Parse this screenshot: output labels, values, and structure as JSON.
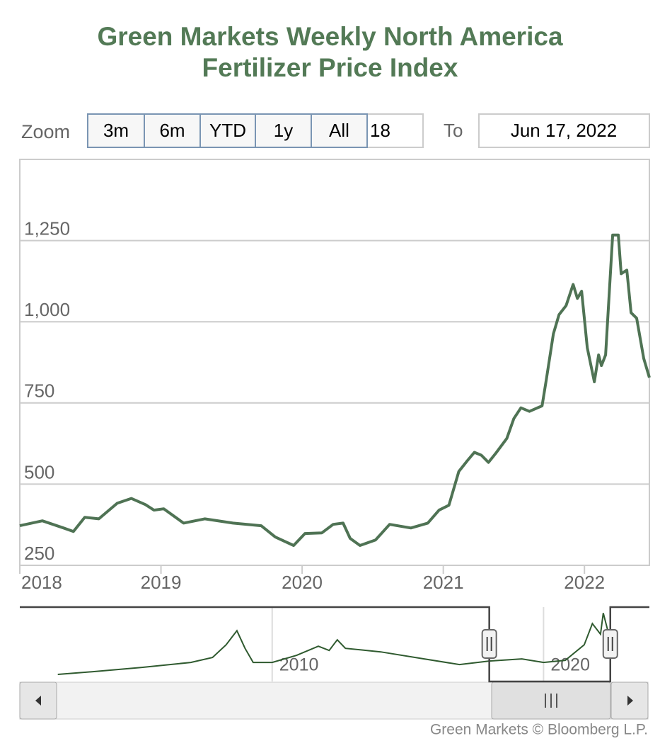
{
  "chart_data": {
    "type": "line",
    "title": "Green Markets Weekly North America\nFertilizer Price Index",
    "range_selector": {
      "label": "Zoom",
      "buttons": [
        "3m",
        "6m",
        "YTD",
        "1y",
        "All"
      ],
      "from_value": "18",
      "to_label": "To",
      "to_value": "Jun 17, 2022"
    },
    "x": [
      2018.0,
      2018.16,
      2018.31,
      2018.38,
      2018.46,
      2018.56,
      2018.69,
      2018.79,
      2018.89,
      2018.95,
      2019.02,
      2019.16,
      2019.31,
      2019.51,
      2019.71,
      2019.81,
      2019.94,
      2020.02,
      2020.14,
      2020.22,
      2020.29,
      2020.34,
      2020.41,
      2020.52,
      2020.62,
      2020.77,
      2020.89,
      2020.97,
      2021.04,
      2021.11,
      2021.17,
      2021.22,
      2021.27,
      2021.32,
      2021.37,
      2021.45,
      2021.5,
      2021.55,
      2021.61,
      2021.7,
      2021.73,
      2021.78,
      2021.82,
      2021.87,
      2021.92,
      2021.95,
      2021.98,
      2022.02,
      2022.07,
      2022.1,
      2022.12,
      2022.15,
      2022.2,
      2022.24,
      2022.26,
      2022.3,
      2022.33,
      2022.37,
      2022.42,
      2022.46
    ],
    "values": [
      372,
      387,
      365,
      354,
      398,
      393,
      441,
      456,
      437,
      420,
      424,
      380,
      393,
      380,
      372,
      337,
      311,
      348,
      350,
      376,
      380,
      333,
      311,
      328,
      376,
      365,
      380,
      420,
      435,
      539,
      572,
      598,
      589,
      567,
      594,
      641,
      702,
      735,
      724,
      741,
      822,
      963,
      1022,
      1050,
      1115,
      1072,
      1094,
      920,
      815,
      898,
      865,
      898,
      1267,
      1267,
      1148,
      1159,
      1028,
      1011,
      887,
      828
    ],
    "color": "#4f7354",
    "xlim": [
      2018.0,
      2022.46
    ],
    "xticks": [
      2018,
      2019,
      2020,
      2021,
      2022
    ],
    "ylim": [
      250,
      1500
    ],
    "yticks": [
      250,
      500,
      750,
      {
        "value": 1000,
        "label": "1,000"
      },
      {
        "value": 1250,
        "label": "1,250"
      }
    ],
    "grid": true,
    "navigator": {
      "x": [
        2002.1,
        2003.4,
        2005.2,
        2007.0,
        2007.8,
        2008.3,
        2008.7,
        2009.0,
        2009.3,
        2010.0,
        2010.9,
        2011.7,
        2012.1,
        2012.4,
        2012.7,
        2014.0,
        2015.6,
        2016.9,
        2018.0,
        2019.2,
        2020.0,
        2020.8,
        2021.5,
        2021.8,
        2022.1,
        2022.2,
        2022.4
      ],
      "values": [
        130,
        182,
        260,
        351,
        442,
        676,
        936,
        611,
        351,
        351,
        481,
        650,
        572,
        767,
        611,
        546,
        416,
        312,
        377,
        416,
        351,
        390,
        676,
        1066,
        871,
        1261,
        871
      ],
      "color": "#2f5a2f",
      "xlim": [
        2000.7,
        2023.9
      ],
      "xticks": [
        2010,
        2020
      ],
      "ylim": [
        0,
        1370
      ]
    },
    "credits": "Green Markets © Bloomberg L.P."
  }
}
